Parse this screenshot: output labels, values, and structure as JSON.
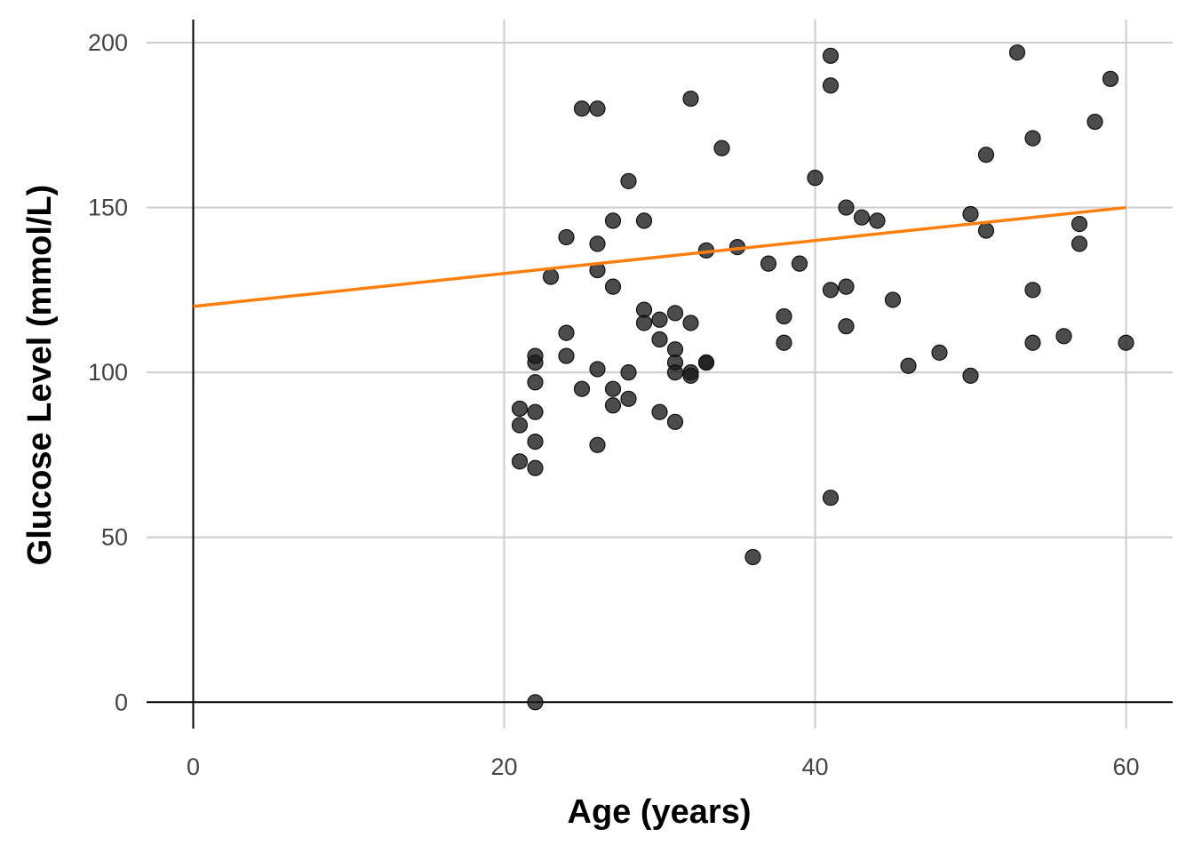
{
  "chart_data": {
    "type": "scatter",
    "title": "",
    "xlabel": "Age (years)",
    "ylabel": "Glucose Level (mmol/L)",
    "xlim": [
      -3,
      63
    ],
    "ylim": [
      -8,
      207
    ],
    "x_ticks": [
      0,
      20,
      40,
      60
    ],
    "y_ticks": [
      0,
      50,
      100,
      150,
      200
    ],
    "x_tick_labels": [
      "0",
      "20",
      "40",
      "60"
    ],
    "y_tick_labels": [
      "0",
      "50",
      "100",
      "150",
      "200"
    ],
    "grid": true,
    "point_color": "#1a1a1a",
    "trend_color": "#ff7f0e",
    "trend_line": {
      "x": [
        0,
        60
      ],
      "y": [
        120,
        150
      ]
    },
    "points": [
      [
        22,
        0
      ],
      [
        36,
        44
      ],
      [
        41,
        62
      ],
      [
        21,
        73
      ],
      [
        22,
        71
      ],
      [
        21,
        84
      ],
      [
        22,
        79
      ],
      [
        21,
        89
      ],
      [
        22,
        88
      ],
      [
        22,
        97
      ],
      [
        22,
        103
      ],
      [
        22,
        105
      ],
      [
        23,
        129
      ],
      [
        24,
        141
      ],
      [
        24,
        112
      ],
      [
        24,
        105
      ],
      [
        25,
        95
      ],
      [
        25,
        180
      ],
      [
        26,
        180
      ],
      [
        26,
        139
      ],
      [
        26,
        131
      ],
      [
        26,
        101
      ],
      [
        26,
        78
      ],
      [
        27,
        146
      ],
      [
        27,
        126
      ],
      [
        27,
        95
      ],
      [
        27,
        90
      ],
      [
        28,
        158
      ],
      [
        28,
        100
      ],
      [
        28,
        92
      ],
      [
        29,
        146
      ],
      [
        29,
        119
      ],
      [
        29,
        115
      ],
      [
        30,
        116
      ],
      [
        30,
        110
      ],
      [
        30,
        88
      ],
      [
        31,
        118
      ],
      [
        31,
        107
      ],
      [
        31,
        103
      ],
      [
        31,
        100
      ],
      [
        31,
        85
      ],
      [
        32,
        183
      ],
      [
        32,
        115
      ],
      [
        32,
        100
      ],
      [
        32,
        99
      ],
      [
        33,
        103
      ],
      [
        33,
        103
      ],
      [
        33,
        137
      ],
      [
        34,
        168
      ],
      [
        35,
        138
      ],
      [
        37,
        133
      ],
      [
        38,
        117
      ],
      [
        38,
        109
      ],
      [
        39,
        133
      ],
      [
        40,
        159
      ],
      [
        41,
        196
      ],
      [
        41,
        187
      ],
      [
        41,
        125
      ],
      [
        42,
        150
      ],
      [
        42,
        126
      ],
      [
        42,
        114
      ],
      [
        43,
        147
      ],
      [
        44,
        146
      ],
      [
        45,
        122
      ],
      [
        46,
        102
      ],
      [
        48,
        106
      ],
      [
        50,
        148
      ],
      [
        50,
        99
      ],
      [
        51,
        166
      ],
      [
        51,
        143
      ],
      [
        53,
        197
      ],
      [
        54,
        171
      ],
      [
        54,
        125
      ],
      [
        54,
        109
      ],
      [
        56,
        111
      ],
      [
        57,
        145
      ],
      [
        57,
        139
      ],
      [
        58,
        176
      ],
      [
        59,
        189
      ],
      [
        60,
        109
      ]
    ]
  }
}
